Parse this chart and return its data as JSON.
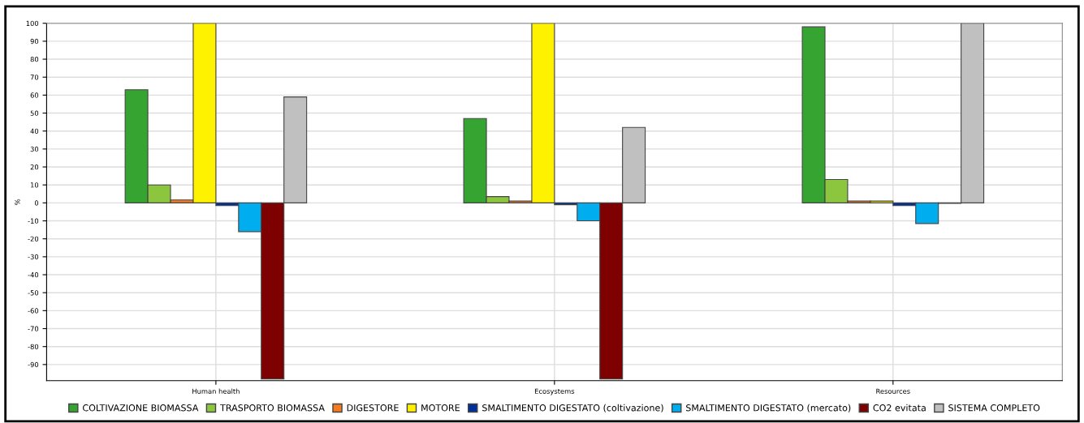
{
  "chart_data": {
    "type": "bar",
    "ylabel": "%",
    "categories": [
      "Human health",
      "Ecosystems",
      "Resources"
    ],
    "series": [
      {
        "name": "COLTIVAZIONE BIOMASSA",
        "color": "#36a431",
        "values": [
          63,
          47,
          98
        ]
      },
      {
        "name": "TRASPORTO BIOMASSA",
        "color": "#8cc63f",
        "values": [
          10,
          3.5,
          13
        ]
      },
      {
        "name": "DIGESTORE",
        "color": "#f47b20",
        "values": [
          1.6,
          1,
          1
        ]
      },
      {
        "name": "MOTORE",
        "color": "#fff200",
        "values": [
          100,
          100,
          1
        ]
      },
      {
        "name": "SMALTIMENTO DIGESTATO (coltivazione)",
        "color": "#002f9e",
        "values": [
          -1.5,
          -1,
          -1.5
        ]
      },
      {
        "name": "SMALTIMENTO DIGESTATO (mercato)",
        "color": "#00adef",
        "values": [
          -16,
          -10,
          -11.5
        ]
      },
      {
        "name": "CO2 evitata",
        "color": "#7f0000",
        "values": [
          -98,
          -98,
          -0.3
        ]
      },
      {
        "name": "SISTEMA COMPLETO",
        "color": "#c0c0c0",
        "values": [
          59,
          42,
          100
        ]
      }
    ],
    "ylim": [
      -99,
      100
    ],
    "yticks": [
      -90,
      -80,
      -70,
      -60,
      -50,
      -40,
      -30,
      -20,
      -10,
      0,
      10,
      20,
      30,
      40,
      50,
      60,
      70,
      80,
      90,
      100
    ],
    "grid": true,
    "legend": "bottom"
  }
}
